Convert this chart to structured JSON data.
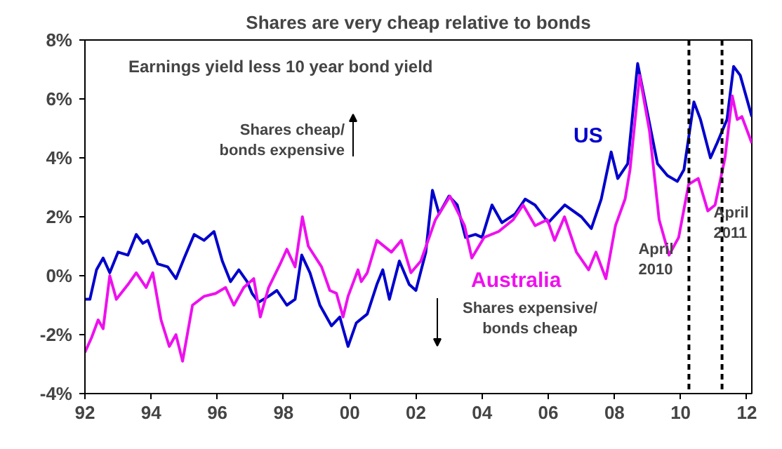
{
  "chart_data": {
    "type": "line",
    "title": "Shares are very cheap relative to bonds",
    "subtitle": "Earnings yield less 10 year bond yield",
    "xlim": [
      1992,
      2012.15
    ],
    "ylim": [
      -4,
      8
    ],
    "xticks": [
      {
        "value": 1992,
        "label": "92"
      },
      {
        "value": 1994,
        "label": "94"
      },
      {
        "value": 1996,
        "label": "96"
      },
      {
        "value": 1998,
        "label": "98"
      },
      {
        "value": 2000,
        "label": "00"
      },
      {
        "value": 2002,
        "label": "02"
      },
      {
        "value": 2004,
        "label": "04"
      },
      {
        "value": 2006,
        "label": "06"
      },
      {
        "value": 2008,
        "label": "08"
      },
      {
        "value": 2010,
        "label": "10"
      },
      {
        "value": 2012,
        "label": "12"
      }
    ],
    "yticks": [
      {
        "value": -4,
        "label": "-4%"
      },
      {
        "value": -2,
        "label": "-2%"
      },
      {
        "value": 0,
        "label": "0%"
      },
      {
        "value": 2,
        "label": "2%"
      },
      {
        "value": 4,
        "label": "4%"
      },
      {
        "value": 6,
        "label": "6%"
      },
      {
        "value": 8,
        "label": "8%"
      }
    ],
    "grid": false,
    "legend": false,
    "line_style": "solid",
    "marker": "none",
    "series": [
      {
        "name": "US",
        "color": "#0000cc",
        "x": [
          1992.0,
          1992.15,
          1992.35,
          1992.55,
          1992.75,
          1993.0,
          1993.3,
          1993.55,
          1993.75,
          1993.9,
          1994.2,
          1994.5,
          1994.75,
          1995.0,
          1995.3,
          1995.6,
          1995.9,
          1996.15,
          1996.4,
          1996.65,
          1996.9,
          1997.05,
          1997.25,
          1997.55,
          1997.8,
          1998.1,
          1998.35,
          1998.55,
          1998.8,
          1999.1,
          1999.45,
          1999.7,
          1999.95,
          2000.2,
          2000.53,
          2000.82,
          2001.0,
          2001.2,
          2001.5,
          2001.8,
          2002.0,
          2002.3,
          2002.5,
          2002.7,
          2003.0,
          2003.25,
          2003.5,
          2003.8,
          2004.0,
          2004.3,
          2004.6,
          2005.0,
          2005.3,
          2005.6,
          2006.0,
          2006.5,
          2007.0,
          2007.3,
          2007.6,
          2007.9,
          2008.1,
          2008.4,
          2008.7,
          2009.0,
          2009.3,
          2009.6,
          2009.9,
          2010.1,
          2010.4,
          2010.6,
          2010.9,
          2011.1,
          2011.4,
          2011.6,
          2011.8,
          2012.15
        ],
        "values": [
          -0.8,
          -0.8,
          0.2,
          0.6,
          0.1,
          0.8,
          0.7,
          1.4,
          1.1,
          1.2,
          0.4,
          0.3,
          -0.1,
          0.6,
          1.4,
          1.2,
          1.5,
          0.5,
          -0.2,
          0.2,
          -0.2,
          -0.6,
          -0.9,
          -0.7,
          -0.5,
          -1.0,
          -0.8,
          0.7,
          0.1,
          -1.0,
          -1.7,
          -1.4,
          -2.4,
          -1.6,
          -1.3,
          -0.3,
          0.2,
          -0.8,
          0.5,
          -0.3,
          -0.5,
          0.8,
          2.9,
          2.1,
          2.7,
          2.4,
          1.3,
          1.4,
          1.3,
          2.4,
          1.8,
          2.1,
          2.6,
          2.4,
          1.8,
          2.4,
          2.0,
          1.6,
          2.6,
          4.2,
          3.3,
          3.8,
          7.2,
          5.5,
          3.8,
          3.4,
          3.2,
          3.6,
          5.9,
          5.3,
          4.0,
          4.5,
          5.3,
          7.1,
          6.8,
          5.4
        ]
      },
      {
        "name": "Australia",
        "color": "#ee10ee",
        "x": [
          1992.0,
          1992.2,
          1992.4,
          1992.55,
          1992.75,
          1992.95,
          1993.3,
          1993.55,
          1993.85,
          1994.05,
          1994.3,
          1994.55,
          1994.75,
          1994.95,
          1995.25,
          1995.6,
          1995.95,
          1996.25,
          1996.5,
          1996.8,
          1997.1,
          1997.3,
          1997.55,
          1997.9,
          1998.1,
          1998.35,
          1998.57,
          1998.75,
          1999.15,
          1999.4,
          1999.6,
          1999.8,
          1999.95,
          2000.25,
          2000.35,
          2000.53,
          2000.82,
          2001.26,
          2001.56,
          2001.85,
          2002.15,
          2002.59,
          2003.03,
          2003.47,
          2003.69,
          2004.06,
          2004.5,
          2004.94,
          2005.24,
          2005.6,
          2005.97,
          2006.19,
          2006.49,
          2006.85,
          2007.22,
          2007.44,
          2007.74,
          2008.03,
          2008.32,
          2008.47,
          2008.76,
          2009.06,
          2009.35,
          2009.65,
          2009.94,
          2010.24,
          2010.53,
          2010.82,
          2011.04,
          2011.34,
          2011.56,
          2011.71,
          2011.85,
          2012.15
        ],
        "values": [
          -2.6,
          -2.1,
          -1.5,
          -1.8,
          0.0,
          -0.8,
          -0.3,
          0.1,
          -0.4,
          0.1,
          -1.5,
          -2.4,
          -2.0,
          -2.9,
          -1.0,
          -0.7,
          -0.6,
          -0.4,
          -1.0,
          -0.4,
          -0.1,
          -1.4,
          -0.4,
          0.4,
          0.9,
          0.3,
          2.0,
          1.0,
          0.3,
          -0.5,
          -0.6,
          -1.4,
          -0.7,
          0.2,
          -0.2,
          0.1,
          1.2,
          0.8,
          1.2,
          0.1,
          0.5,
          1.9,
          2.7,
          1.7,
          0.6,
          1.3,
          1.5,
          1.9,
          2.4,
          1.7,
          1.9,
          1.2,
          2.0,
          0.8,
          0.2,
          0.8,
          -0.1,
          1.7,
          2.6,
          3.6,
          6.8,
          4.9,
          1.9,
          0.7,
          1.3,
          3.1,
          3.3,
          2.2,
          2.4,
          4.0,
          6.1,
          5.3,
          5.4,
          4.5
        ]
      }
    ],
    "ref_lines": [
      {
        "axis": "x",
        "value": 2010.25,
        "label": "April\n2010",
        "line_style": "dashed",
        "color": "#000000"
      },
      {
        "axis": "x",
        "value": 2011.25,
        "label": "April\n2011",
        "line_style": "dashed",
        "color": "#000000"
      }
    ],
    "annotations": [
      "Shares cheap/\nbonds expensive",
      "Shares expensive/\nbonds cheap"
    ]
  }
}
